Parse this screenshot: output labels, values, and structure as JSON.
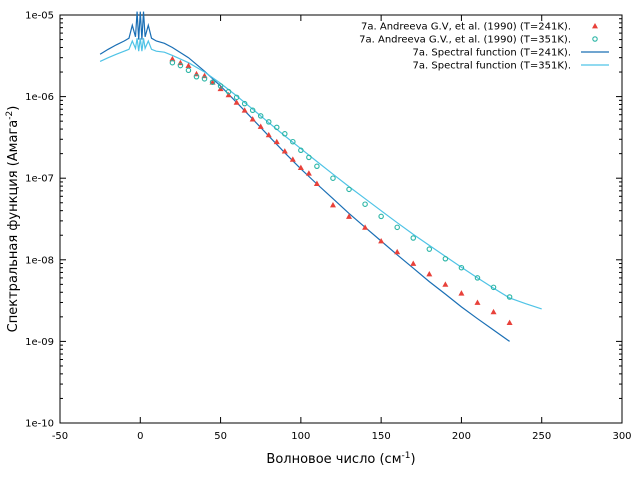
{
  "chart_data": {
    "type": "scatter",
    "xlabel": "Волновое число (см",
    "xlabel_sup": "-1",
    "xlabel_end": ")",
    "ylabel": "Спектральная функция (Амага",
    "ylabel_sup": "-2",
    "ylabel_end": ")",
    "xlim": [
      -50,
      300
    ],
    "ylim": [
      1e-10,
      1e-05
    ],
    "y_scale": "log",
    "x_ticks": [
      -50,
      0,
      50,
      100,
      150,
      200,
      250,
      300
    ],
    "x_tick_labels": [
      "-50",
      "0",
      "50",
      "100",
      "150",
      "200",
      "250",
      "300"
    ],
    "y_ticks": [
      1e-10,
      1e-09,
      1e-08,
      1e-07,
      1e-06,
      1e-05
    ],
    "y_tick_labels": [
      "1e-10",
      "1e-09",
      "1e-08",
      "1e-07",
      "1e-06",
      "1e-05"
    ],
    "grid": false,
    "legend_position": "top-right",
    "series": [
      {
        "name": "7a. Andreeva G.V, et al. (1990) (T=241K).",
        "kind": "points",
        "marker": "triangle",
        "color": "#e8413a",
        "x": [
          20,
          25,
          30,
          35,
          40,
          45,
          50,
          55,
          60,
          65,
          70,
          75,
          80,
          85,
          90,
          95,
          100,
          105,
          110,
          120,
          130,
          140,
          150,
          160,
          170,
          180,
          190,
          200,
          210,
          220,
          230
        ],
        "y": [
          2.9e-06,
          2.6e-06,
          2.4e-06,
          1.9e-06,
          1.8e-06,
          1.5e-06,
          1.25e-06,
          1.05e-06,
          8.5e-07,
          6.8e-07,
          5.3e-07,
          4.3e-07,
          3.4e-07,
          2.8e-07,
          2.15e-07,
          1.7e-07,
          1.35e-07,
          1.15e-07,
          8.6e-08,
          4.7e-08,
          3.4e-08,
          2.5e-08,
          1.7e-08,
          1.25e-08,
          9e-09,
          6.7e-09,
          5e-09,
          3.9e-09,
          3e-09,
          2.3e-09,
          1.7e-09
        ]
      },
      {
        "name": "7a. Andreeva G.V., et al. (1990) (T=351K).",
        "kind": "points",
        "marker": "circle",
        "color": "#2ab5a5",
        "x": [
          20,
          25,
          30,
          35,
          40,
          45,
          50,
          55,
          60,
          65,
          70,
          75,
          80,
          85,
          90,
          95,
          100,
          105,
          110,
          120,
          130,
          140,
          150,
          160,
          170,
          180,
          190,
          200,
          210,
          220,
          230
        ],
        "y": [
          2.6e-06,
          2.4e-06,
          2.1e-06,
          1.75e-06,
          1.65e-06,
          1.5e-06,
          1.35e-06,
          1.15e-06,
          9.8e-07,
          8.2e-07,
          6.8e-07,
          5.8e-07,
          4.9e-07,
          4.2e-07,
          3.5e-07,
          2.8e-07,
          2.2e-07,
          1.8e-07,
          1.4e-07,
          1e-07,
          7.3e-08,
          4.8e-08,
          3.4e-08,
          2.5e-08,
          1.85e-08,
          1.35e-08,
          1.03e-08,
          8e-09,
          6e-09,
          4.6e-09,
          3.5e-09
        ]
      },
      {
        "name": "7a. Spectral function (T=241K).",
        "kind": "line",
        "color": "#1a6fb5",
        "x": [
          -25,
          -20,
          -15,
          -10,
          -7,
          -5,
          -3,
          -2,
          -1,
          0,
          1,
          2,
          3,
          5,
          7,
          10,
          15,
          20,
          30,
          40,
          50,
          60,
          70,
          80,
          90,
          100,
          110,
          120,
          130,
          140,
          150,
          160,
          170,
          180,
          190,
          200,
          210,
          220,
          230
        ],
        "y": [
          3.3e-06,
          3.8e-06,
          4.3e-06,
          4.8e-06,
          5.2e-06,
          7.5e-06,
          5.4e-06,
          1.1e-05,
          5e-06,
          1.1e-05,
          5e-06,
          1.1e-05,
          5.4e-06,
          7.5e-06,
          5.2e-06,
          4.8e-06,
          4.5e-06,
          4e-06,
          3e-06,
          2.05e-06,
          1.35e-06,
          8.5e-07,
          5.3e-07,
          3.3e-07,
          2.05e-07,
          1.3e-07,
          8.5e-08,
          5.6e-08,
          3.7e-08,
          2.5e-08,
          1.7e-08,
          1.15e-08,
          7.9e-09,
          5.4e-09,
          3.8e-09,
          2.65e-09,
          1.9e-09,
          1.38e-09,
          1e-09
        ]
      },
      {
        "name": "7a. Spectral function (T=351K).",
        "kind": "line",
        "color": "#4fc3e6",
        "x": [
          -25,
          -20,
          -15,
          -10,
          -7,
          -5,
          -3,
          -2,
          -1,
          0,
          1,
          2,
          3,
          5,
          7,
          10,
          15,
          20,
          30,
          40,
          50,
          60,
          70,
          80,
          90,
          100,
          110,
          120,
          130,
          140,
          150,
          160,
          170,
          180,
          190,
          200,
          210,
          220,
          230,
          240,
          250
        ],
        "y": [
          2.7e-06,
          3e-06,
          3.3e-06,
          3.6e-06,
          3.8e-06,
          4.8e-06,
          3.9e-06,
          5.2e-06,
          3.6e-06,
          5.2e-06,
          3.6e-06,
          5.2e-06,
          3.9e-06,
          4.8e-06,
          3.8e-06,
          3.6e-06,
          3.5e-06,
          3.2e-06,
          2.6e-06,
          2e-06,
          1.45e-06,
          1.02e-06,
          7e-07,
          4.8e-07,
          3.3e-07,
          2.3e-07,
          1.6e-07,
          1.12e-07,
          7.9e-08,
          5.6e-08,
          4e-08,
          2.85e-08,
          2.05e-08,
          1.5e-08,
          1.1e-08,
          8.1e-09,
          6e-09,
          4.5e-09,
          3.4e-09,
          2.9e-09,
          2.5e-09
        ]
      }
    ]
  }
}
